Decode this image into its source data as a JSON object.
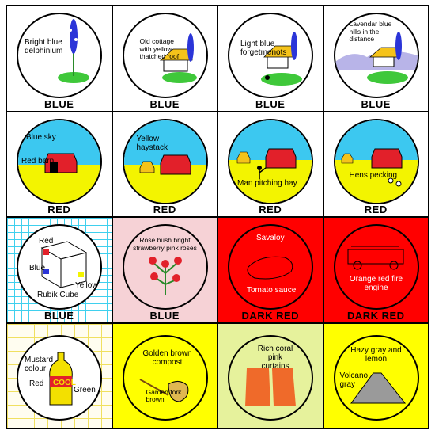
{
  "cells": [
    {
      "label": "Bright blue delphinium",
      "caption": "BLUE"
    },
    {
      "label": "Old cottage with yellow thatched roof",
      "caption": "BLUE"
    },
    {
      "label": "Light blue forgetmenots",
      "caption": "BLUE"
    },
    {
      "label": "Lavendar blue hills in the distance",
      "caption": "BLUE"
    },
    {
      "labels": [
        "Blue sky",
        "Red barn"
      ],
      "caption": "RED"
    },
    {
      "label": "Yellow haystack",
      "caption": "RED"
    },
    {
      "label": "Man pitching hay",
      "caption": "RED"
    },
    {
      "label": "Hens pecking",
      "caption": "RED"
    },
    {
      "labels": [
        "Red",
        "Blue",
        "Yellow",
        "Rubik Cube"
      ],
      "caption": "BLUE"
    },
    {
      "label": "Rose bush bright strawberry pink roses",
      "caption": "BLUE"
    },
    {
      "labels": [
        "Savaloy",
        "Tomato sauce"
      ],
      "caption": "DARK RED"
    },
    {
      "label": "Orange red fire engine",
      "caption": "DARK RED"
    },
    {
      "labels": [
        "Mustard colour",
        "Red",
        "Green",
        "COOL"
      ]
    },
    {
      "labels": [
        "Golden brown compost",
        "Garden fork brown"
      ]
    },
    {
      "label": "Rich coral pink curtains"
    },
    {
      "labels": [
        "Hazy gray and lemon",
        "Volcano gray"
      ]
    }
  ],
  "colors": {
    "blue": "#2b35d8",
    "red": "#e2202a",
    "dark_red": "#ff0000",
    "sky": "#3cc8f0",
    "field": "#f3f400",
    "pink": "#f6d2d6",
    "yellow": "#ffff00",
    "light_yellow": "#e6f29c"
  }
}
